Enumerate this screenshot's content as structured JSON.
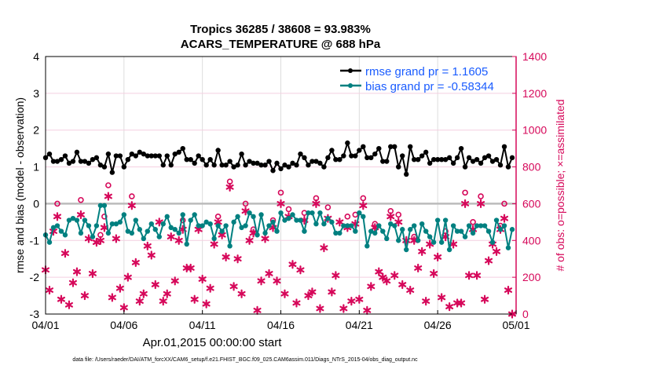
{
  "chart_data": {
    "type": "line",
    "title": "Tropics 36285 / 38608 = 93.983%",
    "subtitle": "ACARS_TEMPERATURE @ 688 hPa",
    "xlabel": "Apr.01,2015 00:00:00 start",
    "ylabel": "rmse and bias (model - observation)",
    "y2label": "# of obs: o=possible; ×=assimilated",
    "footer": "data file: /Users/raeder/DAI/ATM_forcXX/CAM6_setup/f.e21.FHIST_BGC.f09_025.CAM6assim.011/Diags_NTrS_2015-04/obs_diag_output.nc",
    "xlim_days": [
      0,
      30
    ],
    "ylim": [
      -3,
      4
    ],
    "y2lim": [
      0,
      1400
    ],
    "x_ticks": [
      {
        "day": 0,
        "label": "04/01"
      },
      {
        "day": 5,
        "label": "04/06"
      },
      {
        "day": 10,
        "label": "04/11"
      },
      {
        "day": 15,
        "label": "04/16"
      },
      {
        "day": 20,
        "label": "04/21"
      },
      {
        "day": 25,
        "label": "04/26"
      },
      {
        "day": 30,
        "label": "05/01"
      }
    ],
    "y_ticks": [
      "-3",
      "-2",
      "-1",
      "0",
      "1",
      "2",
      "3",
      "4"
    ],
    "y2_ticks": [
      "0",
      "200",
      "400",
      "600",
      "800",
      "1000",
      "1200",
      "1400"
    ],
    "time_step_days": 0.25,
    "legend_position": "top-right",
    "series": [
      {
        "name": "rmse grand pr = 1.1605",
        "color": "#000000",
        "values": [
          1.25,
          1.35,
          1.15,
          1.15,
          1.2,
          1.3,
          1.1,
          1.15,
          1.4,
          1.15,
          1.15,
          1.1,
          1.2,
          1.25,
          1.05,
          1.0,
          1.35,
          0.85,
          1.3,
          1.3,
          1.0,
          1.2,
          1.35,
          1.3,
          1.4,
          1.35,
          1.3,
          1.3,
          1.3,
          1.3,
          1.05,
          1.3,
          1.05,
          1.35,
          1.4,
          1.5,
          1.2,
          1.2,
          1.1,
          1.3,
          1.2,
          1.05,
          1.2,
          1.05,
          1.45,
          1.05,
          1.05,
          1.15,
          1.0,
          1.05,
          1.35,
          1.05,
          1.15,
          1.1,
          1.1,
          1.05,
          1.05,
          1.15,
          0.9,
          1.1,
          0.95,
          1.05,
          1.0,
          1.1,
          1.05,
          1.35,
          1.25,
          1.05,
          1.15,
          1.15,
          1.1,
          1.0,
          1.25,
          1.45,
          1.2,
          1.2,
          1.3,
          1.65,
          1.3,
          1.3,
          1.45,
          1.55,
          1.25,
          1.25,
          1.35,
          1.5,
          1.15,
          1.15,
          1.55,
          1.55,
          1.0,
          1.3,
          0.8,
          1.55,
          1.2,
          1.2,
          1.3,
          1.4,
          1.1,
          1.2,
          1.2,
          1.2,
          1.2,
          1.25,
          1.1,
          1.25,
          1.5,
          1.0,
          1.25,
          1.15,
          1.2,
          1.1,
          1.25,
          1.3,
          1.15,
          1.2,
          1.05,
          1.55,
          1.0,
          1.25
        ]
      },
      {
        "name": "bias grand pr = -0.58344",
        "color": "#008080",
        "values": [
          -0.85,
          -1.05,
          -0.65,
          -0.6,
          -0.75,
          -0.85,
          -0.45,
          -0.4,
          -0.45,
          -0.8,
          -0.45,
          -0.6,
          -0.9,
          -0.6,
          -0.05,
          -0.05,
          -0.8,
          -0.55,
          -0.55,
          -0.5,
          -0.3,
          -0.75,
          -0.8,
          -0.45,
          -0.7,
          -0.95,
          -0.75,
          -0.55,
          -0.7,
          -0.9,
          -0.55,
          -0.35,
          -0.65,
          -0.7,
          -0.8,
          -0.3,
          -1.1,
          -0.45,
          -0.3,
          -0.6,
          -0.6,
          -0.5,
          -0.55,
          -0.95,
          -0.6,
          -0.75,
          -0.6,
          -1.15,
          -0.5,
          -0.35,
          -0.65,
          -0.6,
          -0.25,
          -0.35,
          -0.85,
          -0.3,
          -0.8,
          -0.6,
          -0.5,
          -0.75,
          -0.25,
          -0.45,
          -0.4,
          -0.3,
          -0.45,
          -0.45,
          -0.75,
          -0.25,
          -0.25,
          -0.55,
          -0.25,
          -0.55,
          -0.4,
          -0.5,
          -0.8,
          -0.8,
          -0.6,
          -0.6,
          -0.6,
          -0.75,
          -0.25,
          -0.35,
          -1.15,
          -0.75,
          -0.8,
          -0.6,
          -0.75,
          -0.95,
          -0.55,
          -0.6,
          -1.0,
          -0.7,
          -1.25,
          -0.7,
          -0.6,
          -1.0,
          -0.55,
          -0.75,
          -0.9,
          -1.05,
          -0.45,
          -1.05,
          -0.45,
          -1.25,
          -0.6,
          -0.75,
          -0.75,
          -0.9,
          -0.6,
          -0.8,
          -0.6,
          -0.6,
          -0.6,
          -0.75,
          -1.05,
          -0.45,
          -0.7,
          -0.6,
          -1.2,
          -0.7
        ]
      },
      {
        "name": "assimilated",
        "color": "#d6085a",
        "marker": "star",
        "values": [
          240,
          130,
          450,
          530,
          80,
          330,
          50,
          170,
          230,
          540,
          100,
          410,
          220,
          390,
          400,
          470,
          640,
          90,
          410,
          140,
          35,
          200,
          590,
          280,
          70,
          110,
          370,
          320,
          160,
          500,
          70,
          110,
          420,
          180,
          400,
          460,
          250,
          250,
          80,
          460,
          190,
          55,
          140,
          380,
          500,
          430,
          310,
          690,
          150,
          300,
          110,
          560,
          400,
          440,
          20,
          180,
          410,
          220,
          470,
          180,
          600,
          110,
          530,
          270,
          60,
          240,
          510,
          100,
          120,
          600,
          30,
          360,
          520,
          120,
          210,
          500,
          30,
          470,
          70,
          490,
          80,
          590,
          20,
          150,
          470,
          230,
          200,
          180,
          530,
          210,
          500,
          160,
          400,
          130,
          400,
          250,
          340,
          70,
          380,
          220,
          310,
          90,
          420,
          40,
          380,
          60,
          60,
          600,
          210,
          460,
          210,
          600,
          80,
          290,
          380,
          340,
          460,
          520,
          130,
          0
        ]
      },
      {
        "name": "possible",
        "color": "#d6085a",
        "marker": "circle",
        "values": [
          240,
          130,
          450,
          600,
          80,
          330,
          60,
          170,
          230,
          620,
          100,
          410,
          220,
          390,
          430,
          530,
          700,
          90,
          410,
          140,
          35,
          200,
          640,
          280,
          70,
          110,
          370,
          320,
          160,
          500,
          70,
          110,
          420,
          180,
          400,
          510,
          250,
          250,
          80,
          460,
          190,
          55,
          140,
          380,
          530,
          430,
          310,
          720,
          150,
          300,
          110,
          600,
          400,
          460,
          20,
          180,
          410,
          220,
          510,
          180,
          660,
          110,
          570,
          270,
          60,
          240,
          550,
          100,
          120,
          630,
          30,
          360,
          580,
          120,
          210,
          500,
          30,
          530,
          70,
          540,
          80,
          630,
          20,
          150,
          490,
          230,
          200,
          180,
          560,
          210,
          540,
          160,
          410,
          130,
          420,
          250,
          340,
          70,
          380,
          220,
          310,
          90,
          450,
          40,
          380,
          60,
          60,
          660,
          210,
          500,
          210,
          640,
          80,
          290,
          380,
          340,
          480,
          600,
          130,
          0
        ]
      }
    ]
  }
}
